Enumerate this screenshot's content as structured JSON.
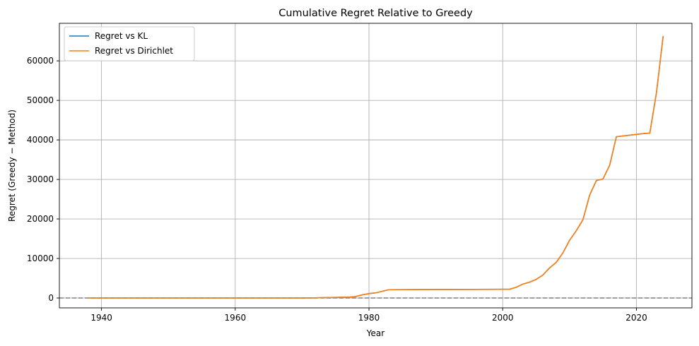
{
  "chart_data": {
    "type": "line",
    "title": "Cumulative Regret Relative to Greedy",
    "xlabel": "Year",
    "ylabel": "Regret (Greedy − Method)",
    "xlim": [
      1933.7,
      2028.3
    ],
    "ylim": [
      -2500,
      69500
    ],
    "xticks": [
      1940,
      1960,
      1980,
      2000,
      2020
    ],
    "yticks": [
      0,
      10000,
      20000,
      30000,
      40000,
      50000,
      60000
    ],
    "grid": true,
    "legend_position": "top-left",
    "reference_line": {
      "y": 0,
      "style": "dashed",
      "color": "#808080"
    },
    "x": [
      1938,
      1950,
      1960,
      1970,
      1972,
      1973,
      1975,
      1977,
      1978,
      1979,
      1980,
      1981,
      1982,
      1983,
      1990,
      2000,
      2001,
      2002,
      2003,
      2004,
      2005,
      2006,
      2007,
      2008,
      2009,
      2010,
      2011,
      2012,
      2013,
      2014,
      2015,
      2016,
      2017,
      2018,
      2019,
      2020,
      2021,
      2022,
      2023,
      2024
    ],
    "series": [
      {
        "name": "Regret vs KL",
        "color": "#1f77b4",
        "values": [
          0,
          0,
          0,
          0,
          30,
          80,
          150,
          220,
          350,
          800,
          1100,
          1300,
          1700,
          2100,
          2150,
          2200,
          2200,
          2700,
          3500,
          4000,
          4700,
          5800,
          7600,
          9000,
          11400,
          14600,
          17000,
          19800,
          26000,
          29700,
          30100,
          33600,
          40800,
          41000,
          41200,
          41400,
          41600,
          41700,
          52000,
          66300
        ]
      },
      {
        "name": "Regret vs Dirichlet",
        "color": "#ff7f0e",
        "values": [
          0,
          0,
          0,
          0,
          30,
          80,
          150,
          220,
          350,
          800,
          1100,
          1300,
          1700,
          2100,
          2150,
          2200,
          2200,
          2700,
          3500,
          4000,
          4700,
          5800,
          7600,
          9000,
          11400,
          14600,
          17000,
          19800,
          26000,
          29700,
          30100,
          33600,
          40800,
          41000,
          41200,
          41400,
          41600,
          41700,
          52000,
          66300
        ]
      }
    ]
  }
}
